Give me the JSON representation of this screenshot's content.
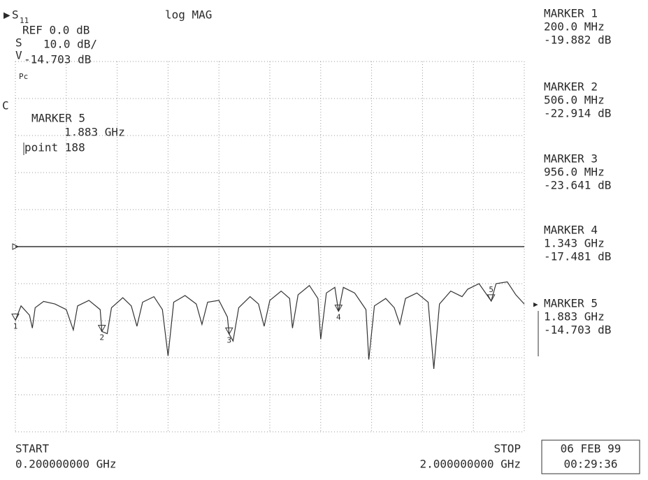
{
  "chart_data": {
    "type": "line",
    "title": "log MAG",
    "param": "S",
    "param_sub": "11",
    "ref_text": "REF 0.0 dB",
    "scale_sym": "S",
    "scale_text": "10.0 dB/",
    "value_sym": "V",
    "value_text": "-14.703 dB",
    "pc_text": "Pc",
    "channel_text": "C",
    "active_marker": [
      "MARKER 5",
      "1.883 GHz",
      "point 188"
    ],
    "panel": [
      [
        "MARKER 1",
        "200.0 MHz",
        "-19.882 dB"
      ],
      [
        "MARKER 2",
        "506.0 MHz",
        "-22.914 dB"
      ],
      [
        "MARKER 3",
        "956.0 MHz",
        "-23.641 dB"
      ],
      [
        "MARKER 4",
        "1.343 GHz",
        "-17.481 dB"
      ],
      [
        "MARKER 5",
        "1.883 GHz",
        "-14.703 dB"
      ]
    ],
    "start_label": "START",
    "start_value": "0.200000000 GHz",
    "stop_label": "STOP",
    "stop_value": "2.000000000 GHz",
    "date": "06 FEB 99",
    "time": "00:29:36",
    "xlim": [
      0.2,
      2.0
    ],
    "ylim": [
      -50,
      50
    ],
    "xticks": [
      0.2,
      0.38,
      0.56,
      0.74,
      0.92,
      1.1,
      1.28,
      1.46,
      1.64,
      1.82,
      2.0
    ],
    "yticks": [
      -50,
      -40,
      -30,
      -20,
      -10,
      0,
      10,
      20,
      30,
      40,
      50
    ],
    "grid": true,
    "ref_level": 0,
    "x": [
      0.2,
      0.22,
      0.25,
      0.26,
      0.27,
      0.3,
      0.34,
      0.38,
      0.405,
      0.42,
      0.46,
      0.5,
      0.506,
      0.525,
      0.54,
      0.58,
      0.61,
      0.63,
      0.65,
      0.69,
      0.72,
      0.74,
      0.76,
      0.8,
      0.84,
      0.86,
      0.88,
      0.92,
      0.95,
      0.956,
      0.97,
      0.99,
      1.03,
      1.06,
      1.08,
      1.1,
      1.14,
      1.17,
      1.18,
      1.2,
      1.24,
      1.27,
      1.28,
      1.3,
      1.33,
      1.343,
      1.36,
      1.4,
      1.44,
      1.45,
      1.47,
      1.51,
      1.54,
      1.56,
      1.58,
      1.62,
      1.66,
      1.68,
      1.7,
      1.74,
      1.78,
      1.8,
      1.84,
      1.883,
      1.9,
      1.94,
      1.97,
      2.0
    ],
    "series": [
      {
        "color": "#333333",
        "values": [
          -19.9,
          -16.0,
          -18.5,
          -22.0,
          -16.5,
          -14.8,
          -15.5,
          -17.0,
          -22.5,
          -16.0,
          -14.5,
          -17.0,
          -22.9,
          -23.5,
          -16.5,
          -13.8,
          -16.0,
          -21.5,
          -15.0,
          -13.5,
          -17.0,
          -29.5,
          -15.0,
          -13.2,
          -15.5,
          -21.0,
          -15.0,
          -14.5,
          -19.0,
          -23.6,
          -25.5,
          -16.5,
          -13.5,
          -15.5,
          -21.5,
          -14.5,
          -12.0,
          -14.0,
          -22.0,
          -13.0,
          -10.5,
          -14.0,
          -25.0,
          -12.5,
          -11.0,
          -17.5,
          -11.0,
          -12.5,
          -17.0,
          -30.5,
          -16.0,
          -14.0,
          -16.5,
          -21.0,
          -14.0,
          -12.5,
          -15.0,
          -33.0,
          -15.5,
          -12.0,
          -13.5,
          -11.5,
          -10.0,
          -14.7,
          -10.0,
          -9.5,
          -13.0,
          -15.5
        ]
      }
    ],
    "marker_labels": [
      "1",
      "2",
      "3",
      "4",
      "5"
    ],
    "marker_x": [
      0.2,
      0.506,
      0.956,
      1.343,
      1.883
    ],
    "marker_y": [
      -19.882,
      -22.914,
      -23.641,
      -17.481,
      -14.703
    ]
  }
}
